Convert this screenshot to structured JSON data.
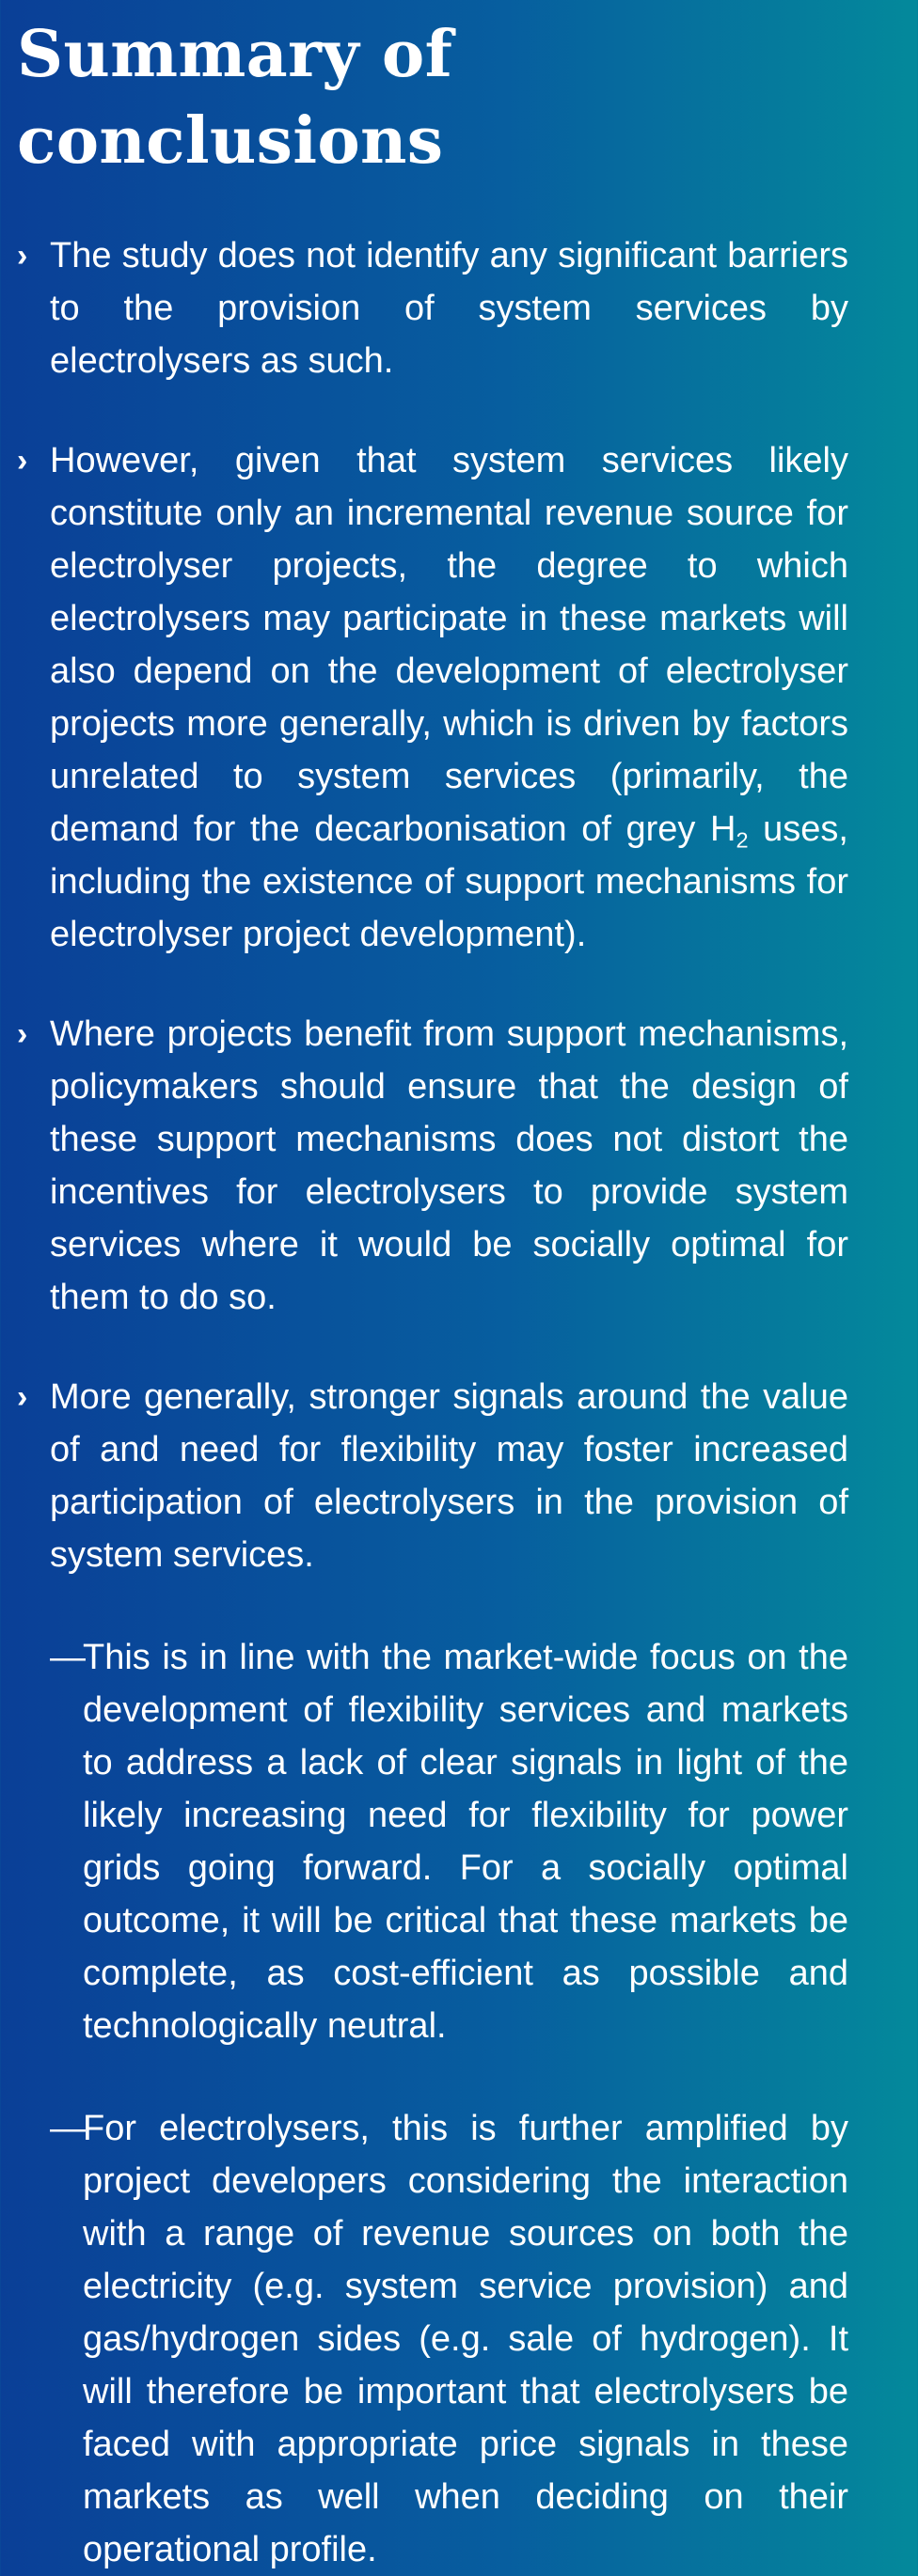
{
  "title": "Summary of conclusions",
  "bullets": [
    {
      "marker": "›",
      "text": "The study does not identify any significant barriers to the provision of system services by electrolysers as such."
    },
    {
      "marker": "›",
      "text_before_subscript": "However, given that system services likely constitute only an incremental revenue source for electrolyser projects, the degree to which electrolysers may participate in these markets will also depend on the development of electrolyser projects more generally, which is driven by factors unrelated to system services (primarily, the demand for the decarbonisation of grey H",
      "subscript": "2",
      "text_after_subscript": " uses, including the existence of support mechanisms for electrolyser project development)."
    },
    {
      "marker": "›",
      "text": "Where projects benefit from support mechanisms, policymakers should ensure that the design of these support mechanisms does not distort the incentives for electrolysers to provide system services where it would be socially optimal for them to do so."
    },
    {
      "marker": "›",
      "text": "More generally, stronger signals around the value of and need for flexibility may foster increased participation of electrolysers in the provision of system services.",
      "subitems": [
        {
          "marker": "—",
          "text": "This is in line with the market-wide focus on the development of flexibility services and markets to address a lack of clear signals in light of the likely increasing need for flexibility for power grids going forward. For a socially optimal outcome, it will be critical that these markets be complete, as cost-efficient as possible and technologically neutral."
        },
        {
          "marker": "—",
          "text": "For electrolysers, this is further amplified by project developers considering the interaction with a range of revenue sources on both the electricity (e.g. system service provision) and gas/hydrogen sides (e.g. sale of hydrogen). It will therefore be important that electrolysers be faced with appropriate price signals in these markets as well when deciding on their operational profile."
        }
      ]
    }
  ]
}
